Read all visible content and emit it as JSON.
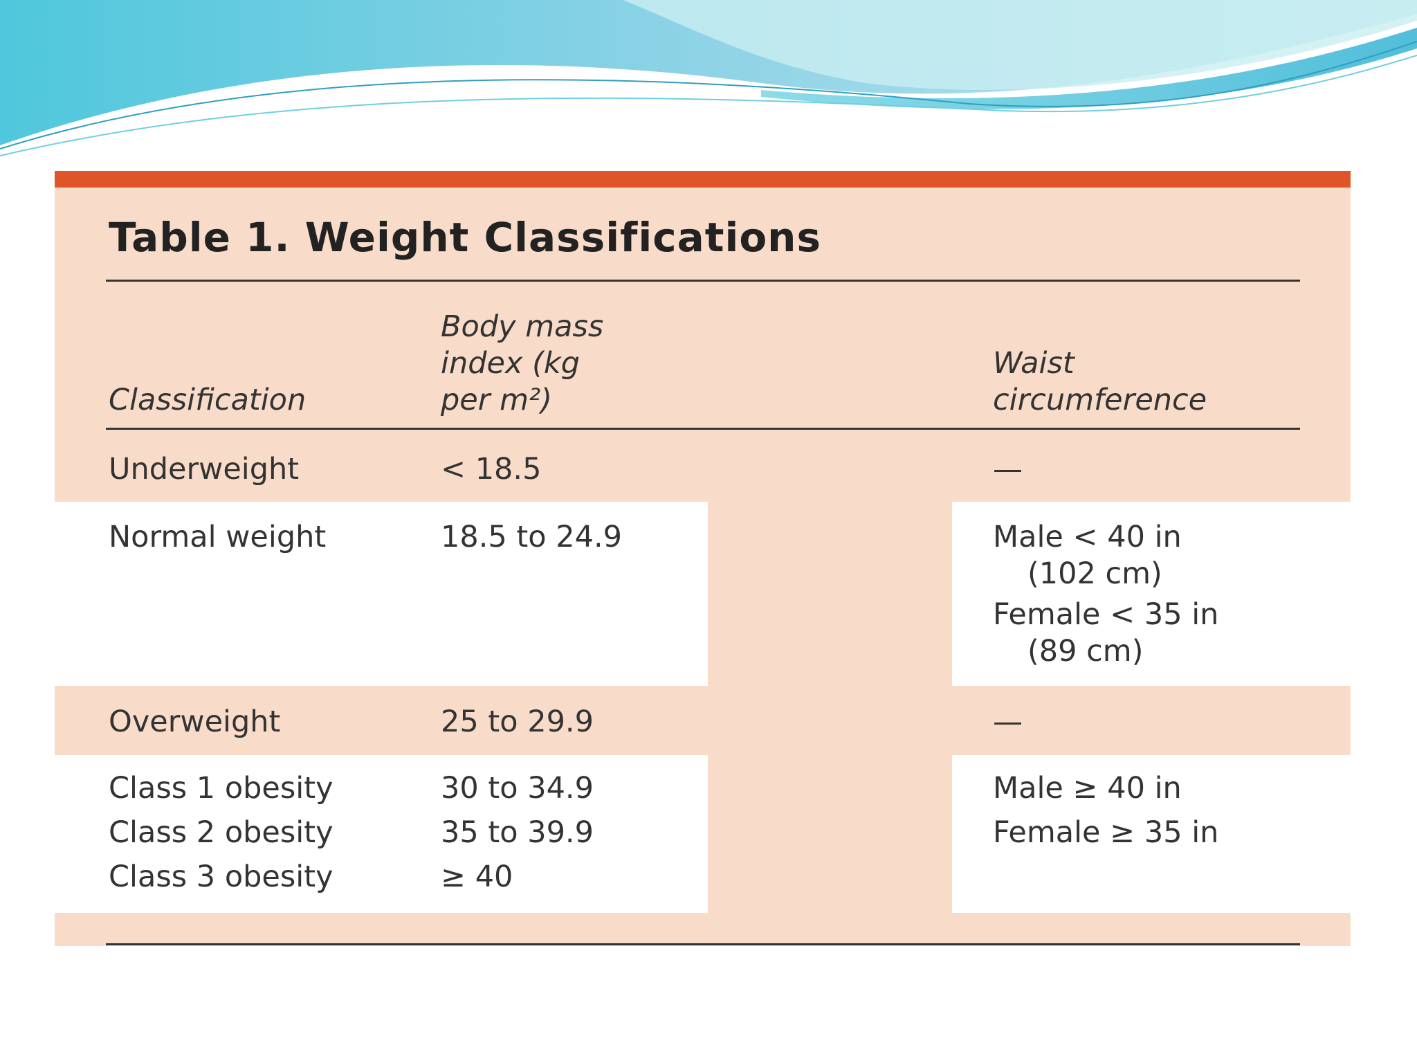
{
  "table": {
    "title": "Table 1. Weight Classifications",
    "headers": {
      "classification": "Classification",
      "bmi": [
        "Body mass",
        "index (kg",
        "per m²)"
      ],
      "waist": [
        "Waist",
        "circumference"
      ]
    },
    "rows": [
      {
        "classification": "Underweight",
        "bmi": "< 18.5",
        "waist": "—"
      },
      {
        "classification": "Normal weight",
        "bmi": "18.5 to 24.9",
        "waist": [
          "Male < 40 in",
          "(102 cm)",
          "Female < 35 in",
          "(89 cm)"
        ]
      },
      {
        "classification": "Overweight",
        "bmi": "25 to 29.9",
        "waist": "—"
      },
      {
        "classification": [
          "Class 1 obesity",
          "Class 2 obesity",
          "Class 3 obesity"
        ],
        "bmi": [
          "30 to 34.9",
          "35 to 39.9",
          "≥ 40"
        ],
        "waist": [
          "Male ≥ 40 in",
          "Female ≥ 35 in"
        ]
      }
    ]
  },
  "colors": {
    "accent_bar": "#e0542a",
    "table_background": "#f8dcc9",
    "bullet": "#2fc6cf",
    "wave_light": "#bfe9ee",
    "wave_dark": "#5cc4da"
  },
  "icons": [
    "wave-decoration-icon",
    "bullet-dot-icon"
  ]
}
